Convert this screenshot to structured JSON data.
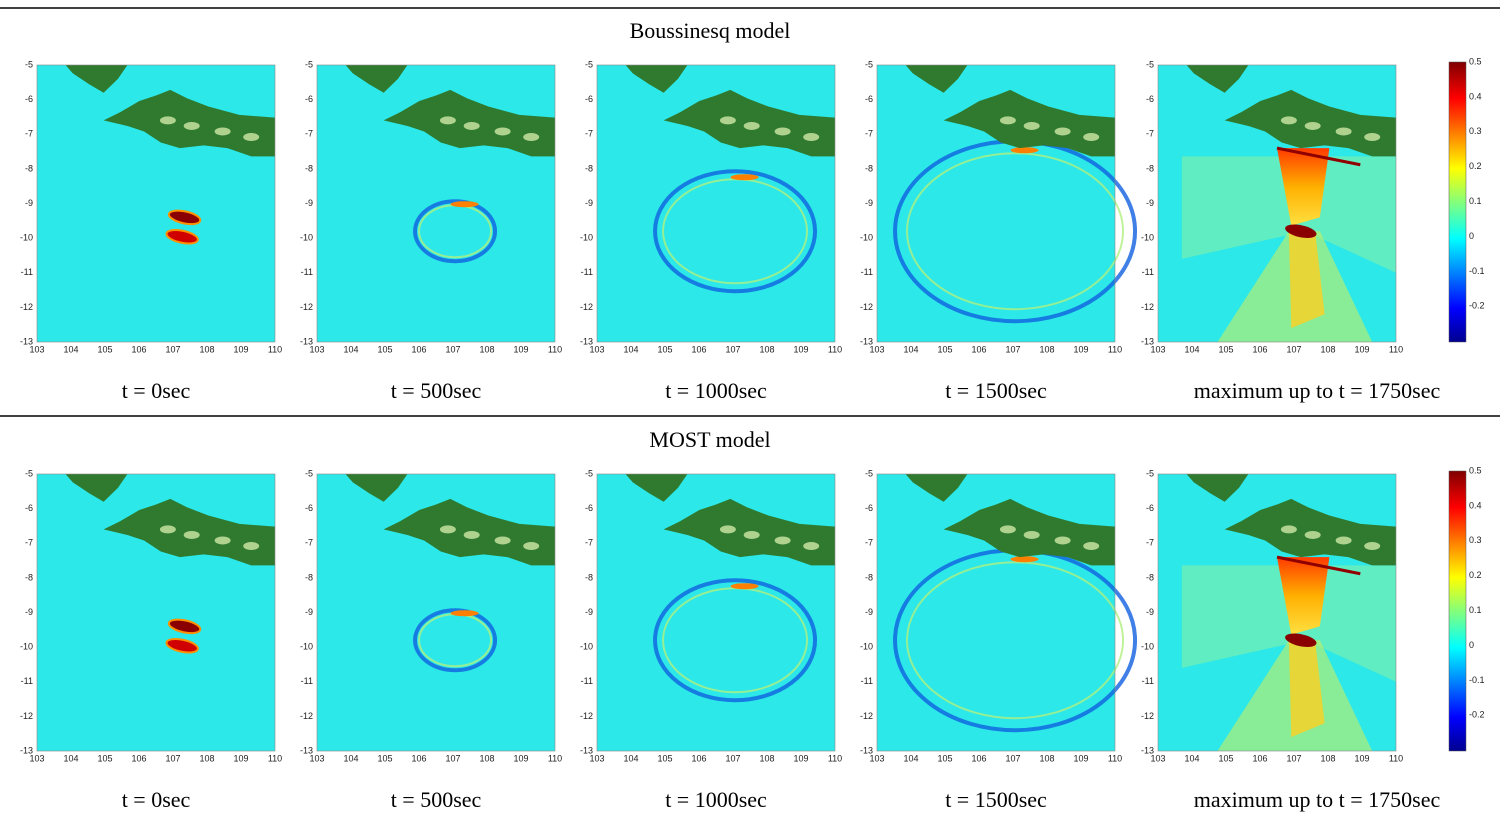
{
  "rows": [
    {
      "title": "Boussinesq model",
      "captions": [
        "t = 0sec",
        "t = 500sec",
        "t = 1000sec",
        "t = 1500sec",
        "maximum up to t = 1750sec"
      ]
    },
    {
      "title": "MOST model",
      "captions": [
        "t = 0sec",
        "t = 500sec",
        "t = 1000sec",
        "t = 1500sec",
        "maximum up to t = 1750sec"
      ]
    }
  ],
  "map_axes": {
    "xticks": [
      103,
      104,
      105,
      106,
      107,
      108,
      109,
      110
    ],
    "yticks": [
      -5,
      -6,
      -7,
      -8,
      -9,
      -10,
      -11,
      -12,
      -13
    ]
  },
  "colorbar": {
    "ticks": [
      0.5,
      0.4,
      0.3,
      0.2,
      0.1,
      0,
      -0.1,
      -0.2
    ]
  }
}
